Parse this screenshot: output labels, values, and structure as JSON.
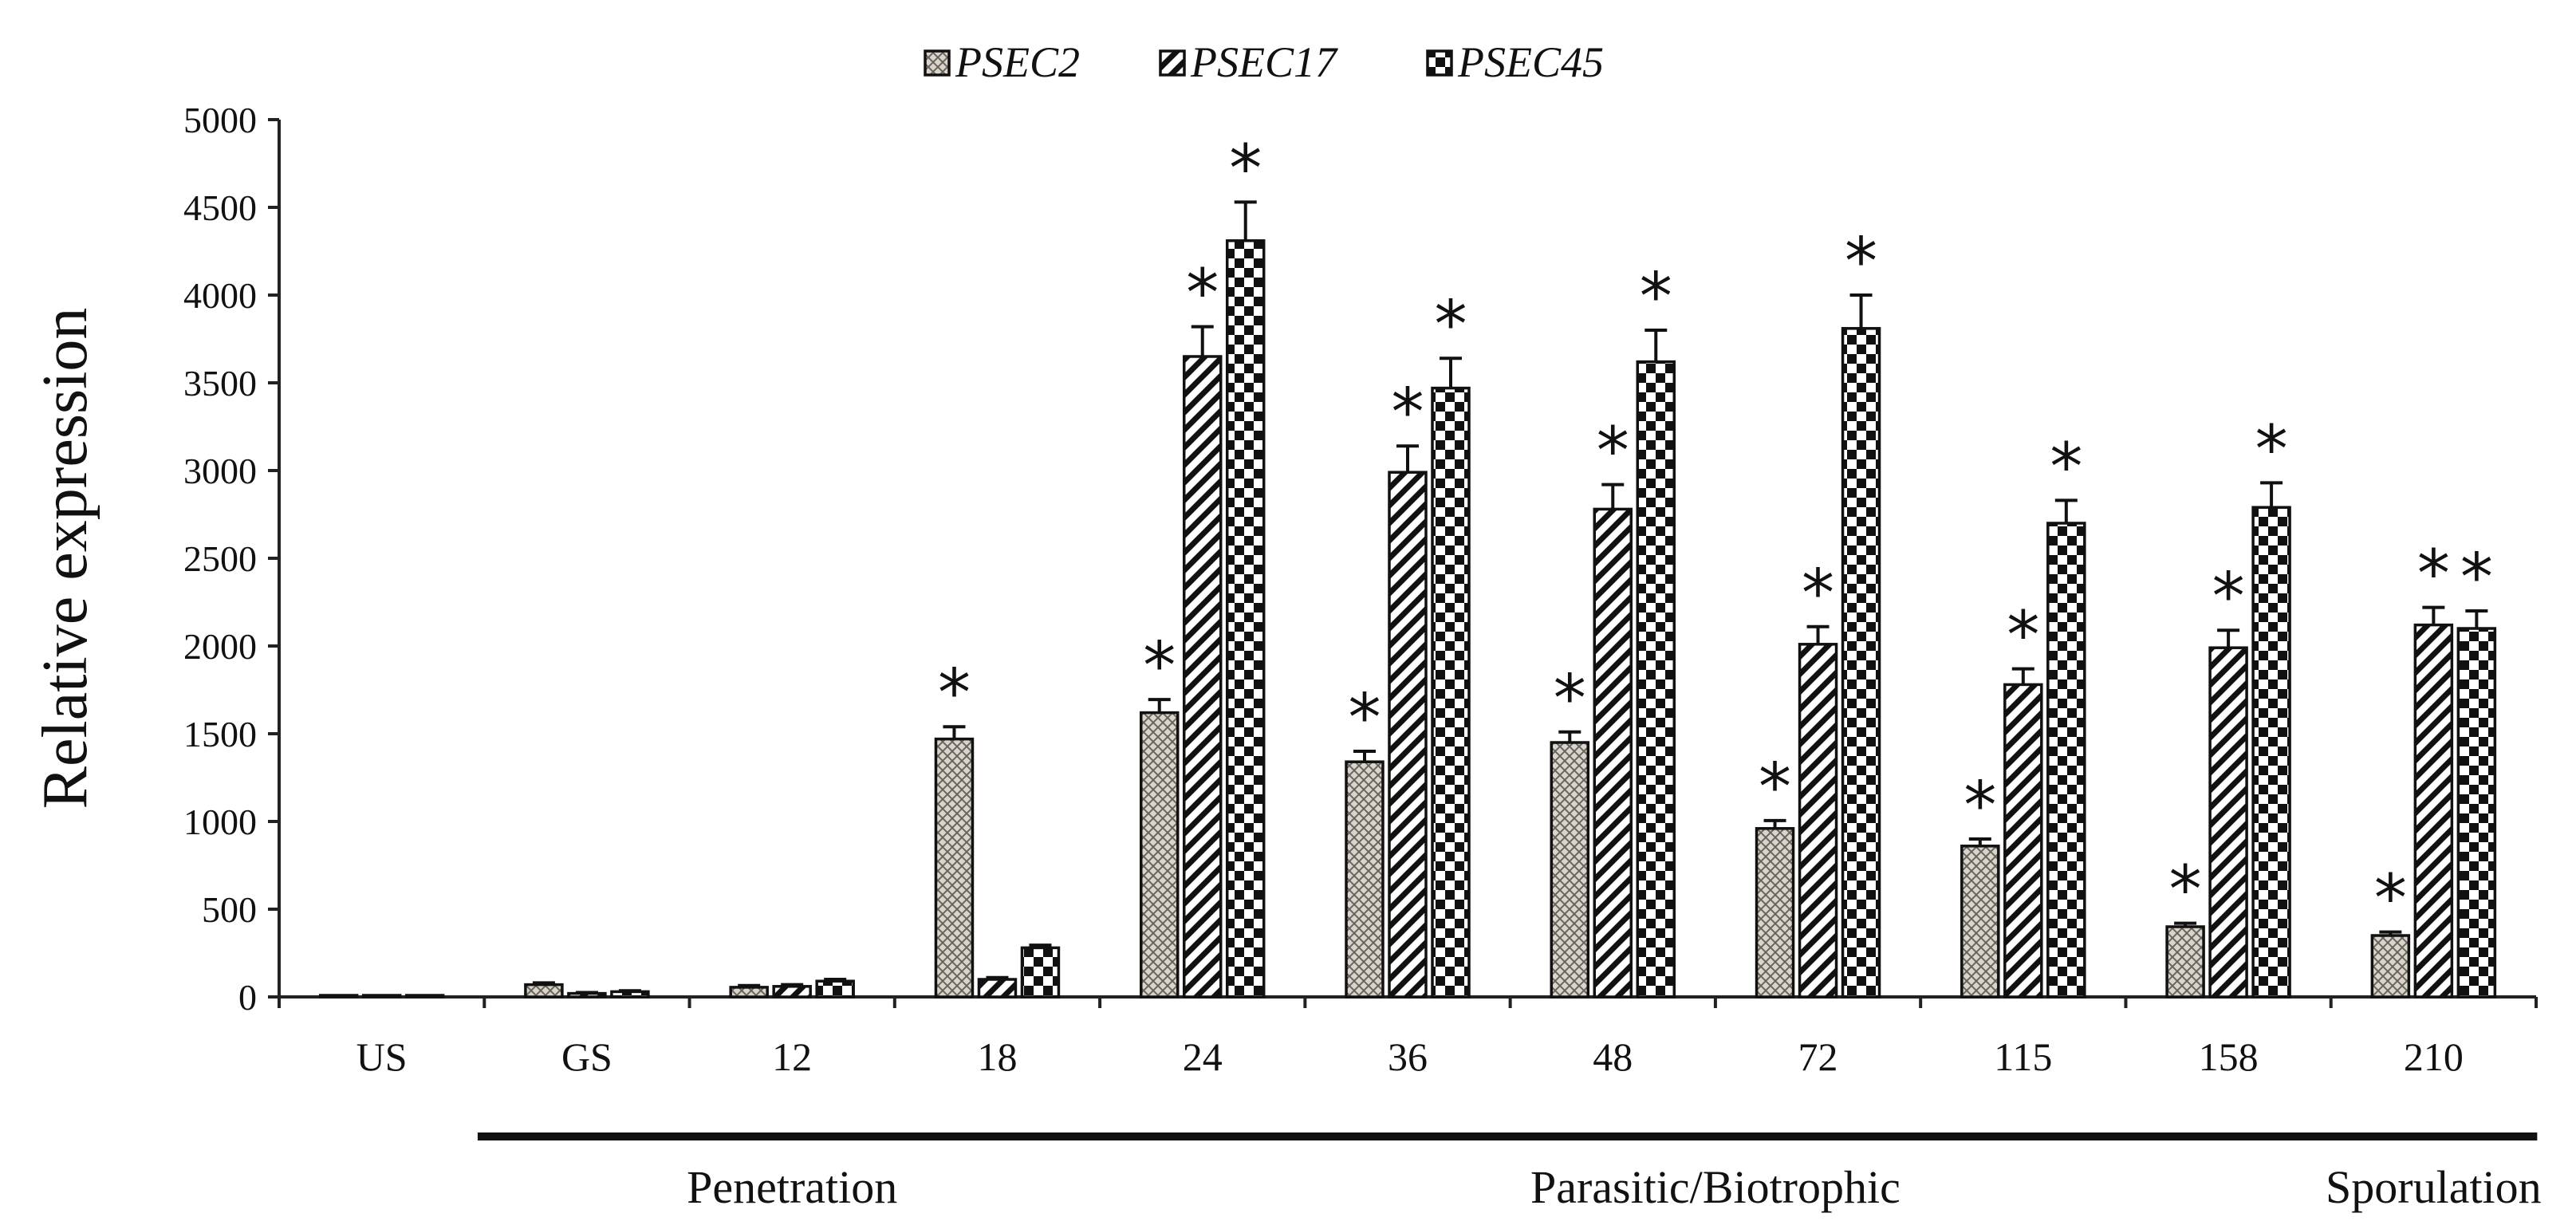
{
  "chart_data": {
    "type": "bar",
    "title": "",
    "xlabel": "",
    "ylabel": "Relative expression",
    "ylim": [
      0,
      5000
    ],
    "yticks": [
      "0",
      "500",
      "1000",
      "1500",
      "2000",
      "2500",
      "3000",
      "3500",
      "4000",
      "4500",
      "5000"
    ],
    "categories": [
      "US",
      "GS",
      "12",
      "18",
      "24",
      "36",
      "48",
      "72",
      "115",
      "158",
      "210"
    ],
    "series": [
      {
        "name": "PSEC2",
        "pattern": "crosshatch",
        "values": [
          5,
          70,
          55,
          1470,
          1620,
          1340,
          1450,
          960,
          860,
          400,
          350
        ],
        "errors": [
          0,
          10,
          10,
          70,
          75,
          60,
          60,
          45,
          40,
          20,
          20
        ],
        "significant": [
          false,
          false,
          false,
          true,
          true,
          true,
          true,
          true,
          true,
          true,
          true
        ]
      },
      {
        "name": "PSEC17",
        "pattern": "diagonal",
        "values": [
          5,
          20,
          60,
          100,
          3650,
          2990,
          2780,
          2010,
          1780,
          1990,
          2120
        ],
        "errors": [
          0,
          5,
          10,
          10,
          170,
          150,
          140,
          100,
          90,
          100,
          100
        ],
        "significant": [
          false,
          false,
          false,
          false,
          true,
          true,
          true,
          true,
          true,
          true,
          true
        ]
      },
      {
        "name": "PSEC45",
        "pattern": "checker",
        "values": [
          5,
          30,
          90,
          280,
          4310,
          3470,
          3620,
          3810,
          2700,
          2790,
          2100
        ],
        "errors": [
          0,
          5,
          10,
          15,
          220,
          170,
          180,
          190,
          130,
          140,
          100
        ],
        "significant": [
          false,
          false,
          false,
          false,
          true,
          true,
          true,
          true,
          true,
          true,
          true
        ]
      }
    ],
    "stages": [
      {
        "label": "Penetration",
        "from": "GS",
        "to": "18"
      },
      {
        "label": "Parasitic/Biotrophic",
        "from": "24",
        "to": "158"
      },
      {
        "label": "Sporulation",
        "from": "210",
        "to": "210"
      }
    ],
    "significance_marker": "*"
  }
}
